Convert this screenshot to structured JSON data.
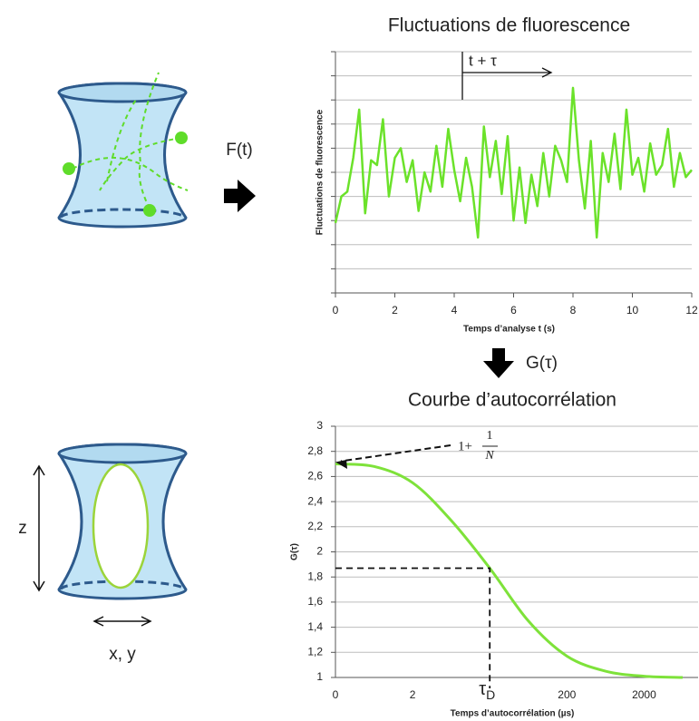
{
  "chart_data": [
    {
      "type": "line",
      "title": "Fluctuations de fluorescence",
      "x_label": "Temps d’analyse t (s)",
      "y_label": "Fluctuations de fluorescence",
      "x": [
        0,
        0.2,
        0.4,
        0.6,
        0.8,
        1.0,
        1.2,
        1.4,
        1.6,
        1.8,
        2.0,
        2.2,
        2.4,
        2.6,
        2.8,
        3.0,
        3.2,
        3.4,
        3.6,
        3.8,
        4.0,
        4.2,
        4.4,
        4.6,
        4.8,
        5.0,
        5.2,
        5.4,
        5.6,
        5.8,
        6.0,
        6.2,
        6.4,
        6.6,
        6.8,
        7.0,
        7.2,
        7.4,
        7.6,
        7.8,
        8.0,
        8.2,
        8.4,
        8.6,
        8.8,
        9.0,
        9.2,
        9.4,
        9.6,
        9.8,
        10.0,
        10.2,
        10.4,
        10.6,
        10.8,
        11.0,
        11.2,
        11.4,
        11.6,
        11.8,
        12.0
      ],
      "values": [
        2.9,
        4.0,
        4.2,
        5.6,
        7.6,
        3.3,
        5.5,
        5.3,
        7.2,
        4.0,
        5.6,
        6.0,
        4.6,
        5.5,
        3.4,
        5.0,
        4.2,
        6.1,
        4.4,
        6.8,
        5.1,
        3.8,
        5.6,
        4.4,
        2.3,
        6.9,
        4.8,
        6.3,
        4.1,
        6.5,
        3.0,
        5.2,
        2.9,
        4.9,
        3.6,
        5.8,
        4.0,
        6.1,
        5.5,
        4.6,
        8.5,
        5.5,
        3.5,
        6.3,
        2.3,
        5.8,
        4.6,
        6.6,
        4.3,
        7.6,
        4.9,
        5.6,
        4.2,
        6.2,
        4.9,
        5.3,
        6.8,
        4.4,
        5.8,
        4.8,
        5.1
      ],
      "color": "#6be22a",
      "smooth": false,
      "xlim": [
        0,
        12
      ],
      "xticks": [
        0,
        2,
        4,
        6,
        8,
        10,
        12
      ],
      "ylim": [
        0,
        10
      ],
      "yticks": [
        0,
        1,
        2,
        3,
        4,
        5,
        6,
        7,
        8,
        9,
        10
      ],
      "y_tick_labels": false,
      "grid": true,
      "annotation": "t + τ"
    },
    {
      "type": "line",
      "title": "Courbe d’autocorrélation",
      "x_label": "Temps d’autocorrélation (µs)",
      "y_label": "G(τ)",
      "categories": [
        "0",
        null,
        "2",
        null,
        null,
        null,
        "200",
        null,
        "2000",
        null
      ],
      "values": [
        2.7,
        2.68,
        2.55,
        2.25,
        1.87,
        1.45,
        1.17,
        1.05,
        1.01,
        1.0
      ],
      "color": "#7ee23a",
      "smooth": true,
      "ylim": [
        1,
        3
      ],
      "yticks": [
        1,
        {
          "value": 1.2,
          "label": "1,2"
        },
        {
          "value": 1.4,
          "label": "1,4"
        },
        {
          "value": 1.6,
          "label": "1,6"
        },
        {
          "value": 1.8,
          "label": "1,8"
        },
        2,
        {
          "value": 2.2,
          "label": "2,2"
        },
        {
          "value": 2.4,
          "label": "2,4"
        },
        {
          "value": 2.6,
          "label": "2,6"
        },
        {
          "value": 2.8,
          "label": "2,8"
        },
        3
      ],
      "y_tick_labels": true,
      "grid": true,
      "tau_label": "τ",
      "tau_sub": "D",
      "formula": {
        "lead": "1+",
        "numerator": "1",
        "denominator": "N"
      }
    }
  ],
  "diagram": {
    "f_label": "F(t)",
    "g_label": "G(τ)",
    "z_label": "z",
    "xy_label": "x, y"
  }
}
